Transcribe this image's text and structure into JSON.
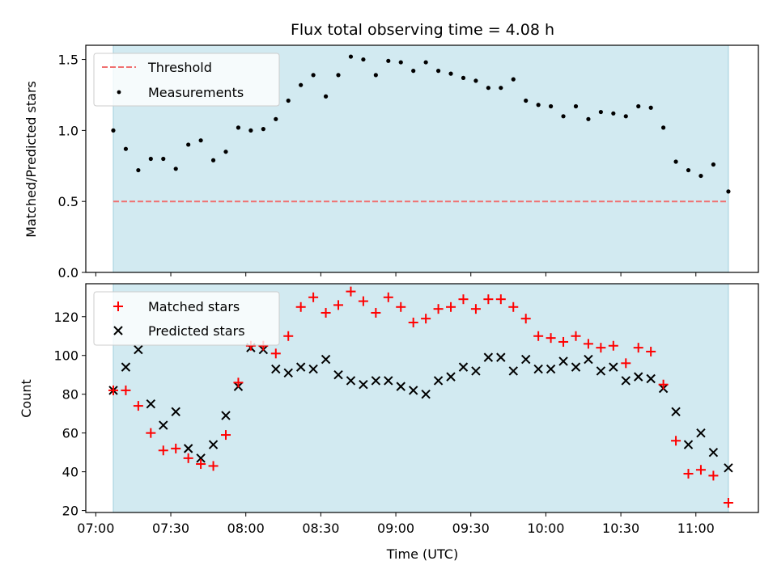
{
  "title": "Flux total observing time = 4.08 h",
  "colors": {
    "background_band": "#add8e6",
    "threshold": "#f07070",
    "measurement": "#000000",
    "matched": "#ff0000",
    "predicted": "#000000"
  },
  "top_panel": {
    "ylabel": "Matched/Predicted stars",
    "legend": {
      "threshold": "Threshold",
      "measurements": "Measurements"
    }
  },
  "bottom_panel": {
    "ylabel": "Count",
    "xlabel": "Time (UTC)",
    "legend": {
      "matched": "Matched stars",
      "predicted": "Predicted stars"
    }
  },
  "chart_data": [
    {
      "type": "scatter",
      "panel": "top",
      "x_axis": "time (minutes since 00:00 UTC)",
      "xlim": [
        416,
        685
      ],
      "ylim": [
        0,
        1.6
      ],
      "yticks": [
        0.0,
        0.5,
        1.0,
        1.5
      ],
      "ytick_labels": [
        "0.0",
        "0.5",
        "1.0",
        "1.5"
      ],
      "shaded_interval": [
        427,
        673
      ],
      "threshold": 0.5,
      "series": [
        {
          "name": "Measurements",
          "x": [
            427,
            432,
            437,
            442,
            447,
            452,
            457,
            462,
            467,
            472,
            477,
            482,
            487,
            492,
            497,
            502,
            507,
            512,
            517,
            522,
            527,
            532,
            537,
            542,
            547,
            552,
            557,
            562,
            567,
            572,
            577,
            582,
            587,
            592,
            597,
            602,
            607,
            612,
            617,
            622,
            627,
            632,
            637,
            642,
            647,
            652,
            657,
            662,
            667,
            673
          ],
          "values": [
            1.0,
            0.87,
            0.72,
            0.8,
            0.8,
            0.73,
            0.9,
            0.93,
            0.79,
            0.85,
            1.02,
            1.0,
            1.01,
            1.08,
            1.21,
            1.32,
            1.39,
            1.24,
            1.39,
            1.52,
            1.5,
            1.39,
            1.49,
            1.48,
            1.42,
            1.48,
            1.42,
            1.4,
            1.37,
            1.35,
            1.3,
            1.3,
            1.36,
            1.21,
            1.18,
            1.17,
            1.1,
            1.17,
            1.08,
            1.13,
            1.12,
            1.1,
            1.17,
            1.16,
            1.02,
            0.78,
            0.72,
            0.68,
            0.76,
            0.57
          ]
        }
      ]
    },
    {
      "type": "scatter",
      "panel": "bottom",
      "x_axis": "time (minutes since 00:00 UTC)",
      "xlim": [
        416,
        685
      ],
      "ylim": [
        19,
        137
      ],
      "yticks": [
        20,
        40,
        60,
        80,
        100,
        120
      ],
      "ytick_labels": [
        "20",
        "40",
        "60",
        "80",
        "100",
        "120"
      ],
      "xticks": [
        420,
        450,
        480,
        510,
        540,
        570,
        600,
        630,
        660
      ],
      "xtick_labels": [
        "07:00",
        "07:30",
        "08:00",
        "08:30",
        "09:00",
        "09:30",
        "10:00",
        "10:30",
        "11:00"
      ],
      "shaded_interval": [
        427,
        673
      ],
      "series": [
        {
          "name": "Matched stars",
          "x": [
            427,
            432,
            437,
            442,
            447,
            452,
            457,
            462,
            467,
            472,
            477,
            482,
            487,
            492,
            497,
            502,
            507,
            512,
            517,
            522,
            527,
            532,
            537,
            542,
            547,
            552,
            557,
            562,
            567,
            572,
            577,
            582,
            587,
            592,
            597,
            602,
            607,
            612,
            617,
            622,
            627,
            632,
            637,
            642,
            647,
            652,
            657,
            662,
            667,
            673
          ],
          "values": [
            82,
            82,
            74,
            60,
            51,
            52,
            47,
            44,
            43,
            59,
            86,
            105,
            105,
            101,
            110,
            125,
            130,
            122,
            126,
            133,
            128,
            122,
            130,
            125,
            117,
            119,
            124,
            125,
            129,
            124,
            129,
            129,
            125,
            119,
            110,
            109,
            107,
            110,
            106,
            104,
            105,
            96,
            104,
            102,
            85,
            56,
            39,
            41,
            38,
            24
          ]
        },
        {
          "name": "Predicted stars",
          "x": [
            427,
            432,
            437,
            442,
            447,
            452,
            457,
            462,
            467,
            472,
            477,
            482,
            487,
            492,
            497,
            502,
            507,
            512,
            517,
            522,
            527,
            532,
            537,
            542,
            547,
            552,
            557,
            562,
            567,
            572,
            577,
            582,
            587,
            592,
            597,
            602,
            607,
            612,
            617,
            622,
            627,
            632,
            637,
            642,
            647,
            652,
            657,
            662,
            667,
            673
          ],
          "values": [
            82,
            94,
            103,
            75,
            64,
            71,
            52,
            47,
            54,
            69,
            84,
            104,
            103,
            93,
            91,
            94,
            93,
            98,
            90,
            87,
            85,
            87,
            87,
            84,
            82,
            80,
            87,
            89,
            94,
            92,
            99,
            99,
            92,
            98,
            93,
            93,
            97,
            94,
            98,
            92,
            94,
            87,
            89,
            88,
            83,
            71,
            54,
            60,
            50,
            42
          ]
        }
      ]
    }
  ]
}
